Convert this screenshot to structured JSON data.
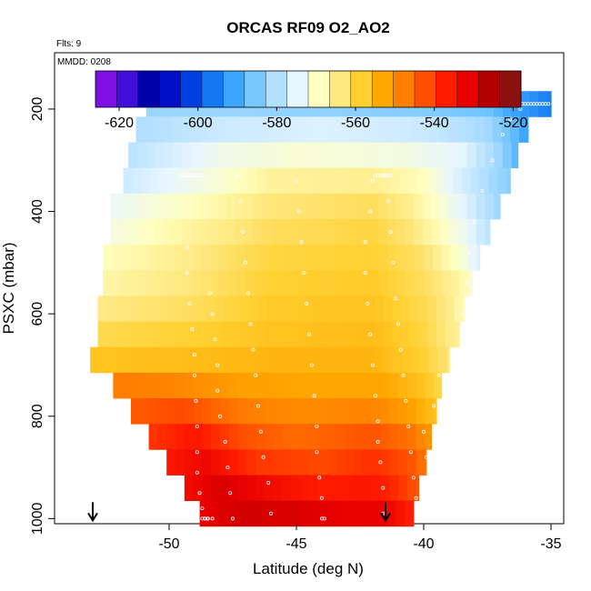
{
  "chart_data": {
    "type": "heatmap",
    "title": "ORCAS RF09 O2_AO2",
    "flights_note": "Flts: 9",
    "date_note": "MMDD: 0208",
    "xlabel": "Latitude (deg N)",
    "ylabel": "PSXC (mbar)",
    "xlim": [
      -54.5,
      -34.5
    ],
    "ylim": [
      1010,
      90
    ],
    "x_ticks": [
      -50,
      -45,
      -40,
      -35
    ],
    "y_ticks": [
      200,
      400,
      600,
      800,
      1000
    ],
    "colorbar": {
      "range": [
        -626,
        -518
      ],
      "ticks": [
        -620,
        -600,
        -580,
        -560,
        -540,
        -520
      ],
      "colors": [
        "#7f10e6",
        "#4010d8",
        "#0000aa",
        "#0010c8",
        "#0040e0",
        "#1478f0",
        "#3ca6ff",
        "#78c8ff",
        "#b4e0ff",
        "#e8f6ff",
        "#ffffc0",
        "#ffe880",
        "#ffd030",
        "#ffa800",
        "#ff8000",
        "#ff5000",
        "#ff1c00",
        "#e60000",
        "#b40000",
        "#8c1010"
      ]
    },
    "levels": [
      {
        "p": 190,
        "lat_min": -50.9,
        "lat_max": -35.0,
        "points": [
          [
            -50.9,
            -583
          ],
          [
            -48.0,
            -583
          ],
          [
            -44.0,
            -584
          ],
          [
            -40.0,
            -585
          ],
          [
            -37.5,
            -587
          ],
          [
            -36.5,
            -592
          ],
          [
            -35.0,
            -597
          ]
        ]
      },
      {
        "p": 240,
        "lat_min": -51.3,
        "lat_max": -35.9,
        "points": [
          [
            -51.3,
            -581
          ],
          [
            -48.0,
            -578
          ],
          [
            -44.0,
            -576
          ],
          [
            -40.0,
            -578
          ],
          [
            -37.5,
            -582
          ],
          [
            -36.5,
            -588
          ],
          [
            -35.9,
            -593
          ]
        ]
      },
      {
        "p": 290,
        "lat_min": -51.6,
        "lat_max": -36.3,
        "points": [
          [
            -51.6,
            -580
          ],
          [
            -48.0,
            -573
          ],
          [
            -45.0,
            -571
          ],
          [
            -41.0,
            -572
          ],
          [
            -38.5,
            -575
          ],
          [
            -37.0,
            -583
          ],
          [
            -36.3,
            -590
          ]
        ]
      },
      {
        "p": 340,
        "lat_min": -51.8,
        "lat_max": -36.6,
        "points": [
          [
            -51.8,
            -578
          ],
          [
            -48.0,
            -571
          ],
          [
            -46.0,
            -566
          ],
          [
            -42.0,
            -565
          ],
          [
            -40.0,
            -569
          ],
          [
            -38.5,
            -577
          ],
          [
            -36.6,
            -585
          ]
        ]
      },
      {
        "p": 390,
        "lat_min": -52.3,
        "lat_max": -37.0,
        "points": [
          [
            -52.3,
            -574
          ],
          [
            -49.0,
            -569
          ],
          [
            -46.0,
            -563
          ],
          [
            -42.0,
            -561
          ],
          [
            -40.5,
            -565
          ],
          [
            -38.5,
            -575
          ],
          [
            -37.0,
            -583
          ]
        ]
      },
      {
        "p": 440,
        "lat_min": -52.3,
        "lat_max": -37.4,
        "points": [
          [
            -52.3,
            -572
          ],
          [
            -49.0,
            -566
          ],
          [
            -46.0,
            -561
          ],
          [
            -42.0,
            -559
          ],
          [
            -40.5,
            -563
          ],
          [
            -38.5,
            -573
          ],
          [
            -37.4,
            -580
          ]
        ]
      },
      {
        "p": 490,
        "lat_min": -52.6,
        "lat_max": -37.8,
        "points": [
          [
            -52.6,
            -569
          ],
          [
            -49.0,
            -564
          ],
          [
            -46.0,
            -559
          ],
          [
            -42.0,
            -558
          ],
          [
            -40.0,
            -562
          ],
          [
            -38.5,
            -571
          ],
          [
            -37.8,
            -577
          ]
        ]
      },
      {
        "p": 540,
        "lat_min": -52.6,
        "lat_max": -38.1,
        "points": [
          [
            -52.6,
            -567
          ],
          [
            -49.0,
            -563
          ],
          [
            -46.0,
            -558
          ],
          [
            -42.0,
            -557
          ],
          [
            -40.0,
            -561
          ],
          [
            -38.5,
            -567
          ],
          [
            -38.1,
            -572
          ]
        ]
      },
      {
        "p": 590,
        "lat_min": -52.8,
        "lat_max": -38.4,
        "points": [
          [
            -52.8,
            -564
          ],
          [
            -49.0,
            -561
          ],
          [
            -46.0,
            -557
          ],
          [
            -42.0,
            -556
          ],
          [
            -40.0,
            -560
          ],
          [
            -38.8,
            -565
          ],
          [
            -38.4,
            -570
          ]
        ]
      },
      {
        "p": 640,
        "lat_min": -52.8,
        "lat_max": -38.6,
        "points": [
          [
            -52.8,
            -560
          ],
          [
            -49.0,
            -558
          ],
          [
            -46.0,
            -556
          ],
          [
            -42.0,
            -555
          ],
          [
            -40.0,
            -559
          ],
          [
            -38.6,
            -566
          ]
        ]
      },
      {
        "p": 690,
        "lat_min": -53.1,
        "lat_max": -39.0,
        "points": [
          [
            -53.1,
            -556
          ],
          [
            -49.0,
            -555
          ],
          [
            -46.0,
            -554
          ],
          [
            -42.0,
            -554
          ],
          [
            -40.0,
            -558
          ],
          [
            -39.0,
            -563
          ]
        ]
      },
      {
        "p": 740,
        "lat_min": -52.2,
        "lat_max": -39.3,
        "points": [
          [
            -52.2,
            -546
          ],
          [
            -50.0,
            -547
          ],
          [
            -47.0,
            -551
          ],
          [
            -44.0,
            -552
          ],
          [
            -41.5,
            -552
          ],
          [
            -40.0,
            -556
          ],
          [
            -39.3,
            -560
          ]
        ]
      },
      {
        "p": 790,
        "lat_min": -51.5,
        "lat_max": -39.5,
        "points": [
          [
            -51.5,
            -542
          ],
          [
            -49.5,
            -540
          ],
          [
            -47.0,
            -546
          ],
          [
            -45.0,
            -548
          ],
          [
            -42.0,
            -547
          ],
          [
            -40.5,
            -551
          ],
          [
            -39.5,
            -556
          ]
        ]
      },
      {
        "p": 840,
        "lat_min": -50.8,
        "lat_max": -39.7,
        "points": [
          [
            -50.8,
            -538
          ],
          [
            -49.0,
            -534
          ],
          [
            -47.0,
            -541
          ],
          [
            -45.0,
            -544
          ],
          [
            -42.0,
            -541
          ],
          [
            -40.5,
            -545
          ],
          [
            -39.7,
            -550
          ]
        ]
      },
      {
        "p": 890,
        "lat_min": -50.1,
        "lat_max": -39.9,
        "points": [
          [
            -50.1,
            -534
          ],
          [
            -48.5,
            -531
          ],
          [
            -46.5,
            -538
          ],
          [
            -44.0,
            -540
          ],
          [
            -42.0,
            -537
          ],
          [
            -40.5,
            -541
          ],
          [
            -39.9,
            -546
          ]
        ]
      },
      {
        "p": 940,
        "lat_min": -49.4,
        "lat_max": -40.2,
        "points": [
          [
            -49.4,
            -532
          ],
          [
            -48.0,
            -528
          ],
          [
            -46.0,
            -532
          ],
          [
            -44.0,
            -535
          ],
          [
            -42.0,
            -534
          ],
          [
            -41.0,
            -537
          ],
          [
            -40.2,
            -542
          ]
        ]
      },
      {
        "p": 990,
        "lat_min": -48.8,
        "lat_max": -40.4,
        "points": [
          [
            -48.8,
            -530
          ],
          [
            -47.0,
            -527
          ],
          [
            -45.0,
            -528
          ],
          [
            -43.0,
            -530
          ],
          [
            -41.5,
            -530
          ],
          [
            -40.4,
            -536
          ]
        ]
      }
    ],
    "flight_track": {
      "color": "#ffffff",
      "points": [
        [
          -48.6,
          1000
        ],
        [
          -48.7,
          980
        ],
        [
          -48.8,
          950
        ],
        [
          -48.9,
          910
        ],
        [
          -48.9,
          870
        ],
        [
          -48.9,
          820
        ],
        [
          -48.95,
          770
        ],
        [
          -49.0,
          720
        ],
        [
          -49.0,
          680
        ],
        [
          -49.1,
          630
        ],
        [
          -49.2,
          580
        ],
        [
          -49.3,
          520
        ],
        [
          -49.3,
          470
        ],
        [
          -47.5,
          1000
        ],
        [
          -47.6,
          950
        ],
        [
          -47.7,
          900
        ],
        [
          -47.8,
          850
        ],
        [
          -48.0,
          800
        ],
        [
          -48.1,
          750
        ],
        [
          -48.1,
          700
        ],
        [
          -48.2,
          650
        ],
        [
          -48.3,
          600
        ],
        [
          -48.4,
          560
        ],
        [
          -46.0,
          990
        ],
        [
          -46.1,
          930
        ],
        [
          -46.3,
          880
        ],
        [
          -46.4,
          830
        ],
        [
          -46.5,
          780
        ],
        [
          -46.6,
          720
        ],
        [
          -46.7,
          670
        ],
        [
          -46.8,
          620
        ],
        [
          -46.9,
          560
        ],
        [
          -47.0,
          500
        ],
        [
          -47.1,
          440
        ],
        [
          -47.2,
          380
        ],
        [
          -47.3,
          330
        ],
        [
          -43.9,
          1000
        ],
        [
          -44.0,
          960
        ],
        [
          -44.1,
          920
        ],
        [
          -44.2,
          870
        ],
        [
          -44.2,
          820
        ],
        [
          -44.3,
          760
        ],
        [
          -44.4,
          700
        ],
        [
          -44.5,
          640
        ],
        [
          -44.6,
          580
        ],
        [
          -44.7,
          520
        ],
        [
          -44.8,
          460
        ],
        [
          -44.9,
          400
        ],
        [
          -45.0,
          340
        ],
        [
          -41.6,
          990
        ],
        [
          -41.6,
          940
        ],
        [
          -41.7,
          890
        ],
        [
          -41.8,
          850
        ],
        [
          -41.8,
          810
        ],
        [
          -41.9,
          760
        ],
        [
          -42.0,
          700
        ],
        [
          -42.1,
          640
        ],
        [
          -42.2,
          580
        ],
        [
          -42.3,
          520
        ],
        [
          -42.3,
          460
        ],
        [
          -42.1,
          400
        ],
        [
          -42.0,
          340
        ],
        [
          -40.2,
          1000
        ],
        [
          -40.3,
          960
        ],
        [
          -40.4,
          920
        ],
        [
          -40.5,
          870
        ],
        [
          -40.6,
          820
        ],
        [
          -40.7,
          770
        ],
        [
          -40.8,
          720
        ],
        [
          -40.9,
          670
        ],
        [
          -41.0,
          620
        ],
        [
          -41.1,
          570
        ],
        [
          -41.2,
          500
        ],
        [
          -41.3,
          440
        ],
        [
          -41.4,
          380
        ],
        [
          -41.5,
          330
        ],
        [
          -39.8,
          930
        ],
        [
          -39.9,
          880
        ],
        [
          -40.0,
          830
        ],
        [
          -39.6,
          780
        ],
        [
          -39.4,
          720
        ],
        [
          -38.5,
          600
        ],
        [
          -38.3,
          540
        ],
        [
          -38.2,
          480
        ],
        [
          -38.0,
          420
        ],
        [
          -37.7,
          360
        ],
        [
          -37.3,
          300
        ],
        [
          -36.9,
          250
        ],
        [
          -36.6,
          220
        ],
        [
          -36.2,
          200
        ],
        [
          -48.5,
          1000
        ],
        [
          -48.3,
          1000
        ],
        [
          -44.0,
          1000
        ]
      ],
      "horizontal_runs": [
        {
          "p": 330,
          "lat_from": -49.6,
          "lat_to": -48.6
        },
        {
          "p": 330,
          "lat_from": -41.9,
          "lat_to": -41.3
        },
        {
          "p": 190,
          "lat_from": -36.7,
          "lat_to": -35.0
        },
        {
          "p": 190,
          "lat_from": -51.0,
          "lat_to": -50.7
        },
        {
          "p": 1000,
          "lat_from": -40.3,
          "lat_to": -40.0
        },
        {
          "p": 1000,
          "lat_from": -48.7,
          "lat_to": -48.4
        }
      ]
    },
    "markers": [
      {
        "lat": -53.0,
        "p": 1000
      },
      {
        "lat": -41.5,
        "p": 1000
      }
    ]
  }
}
